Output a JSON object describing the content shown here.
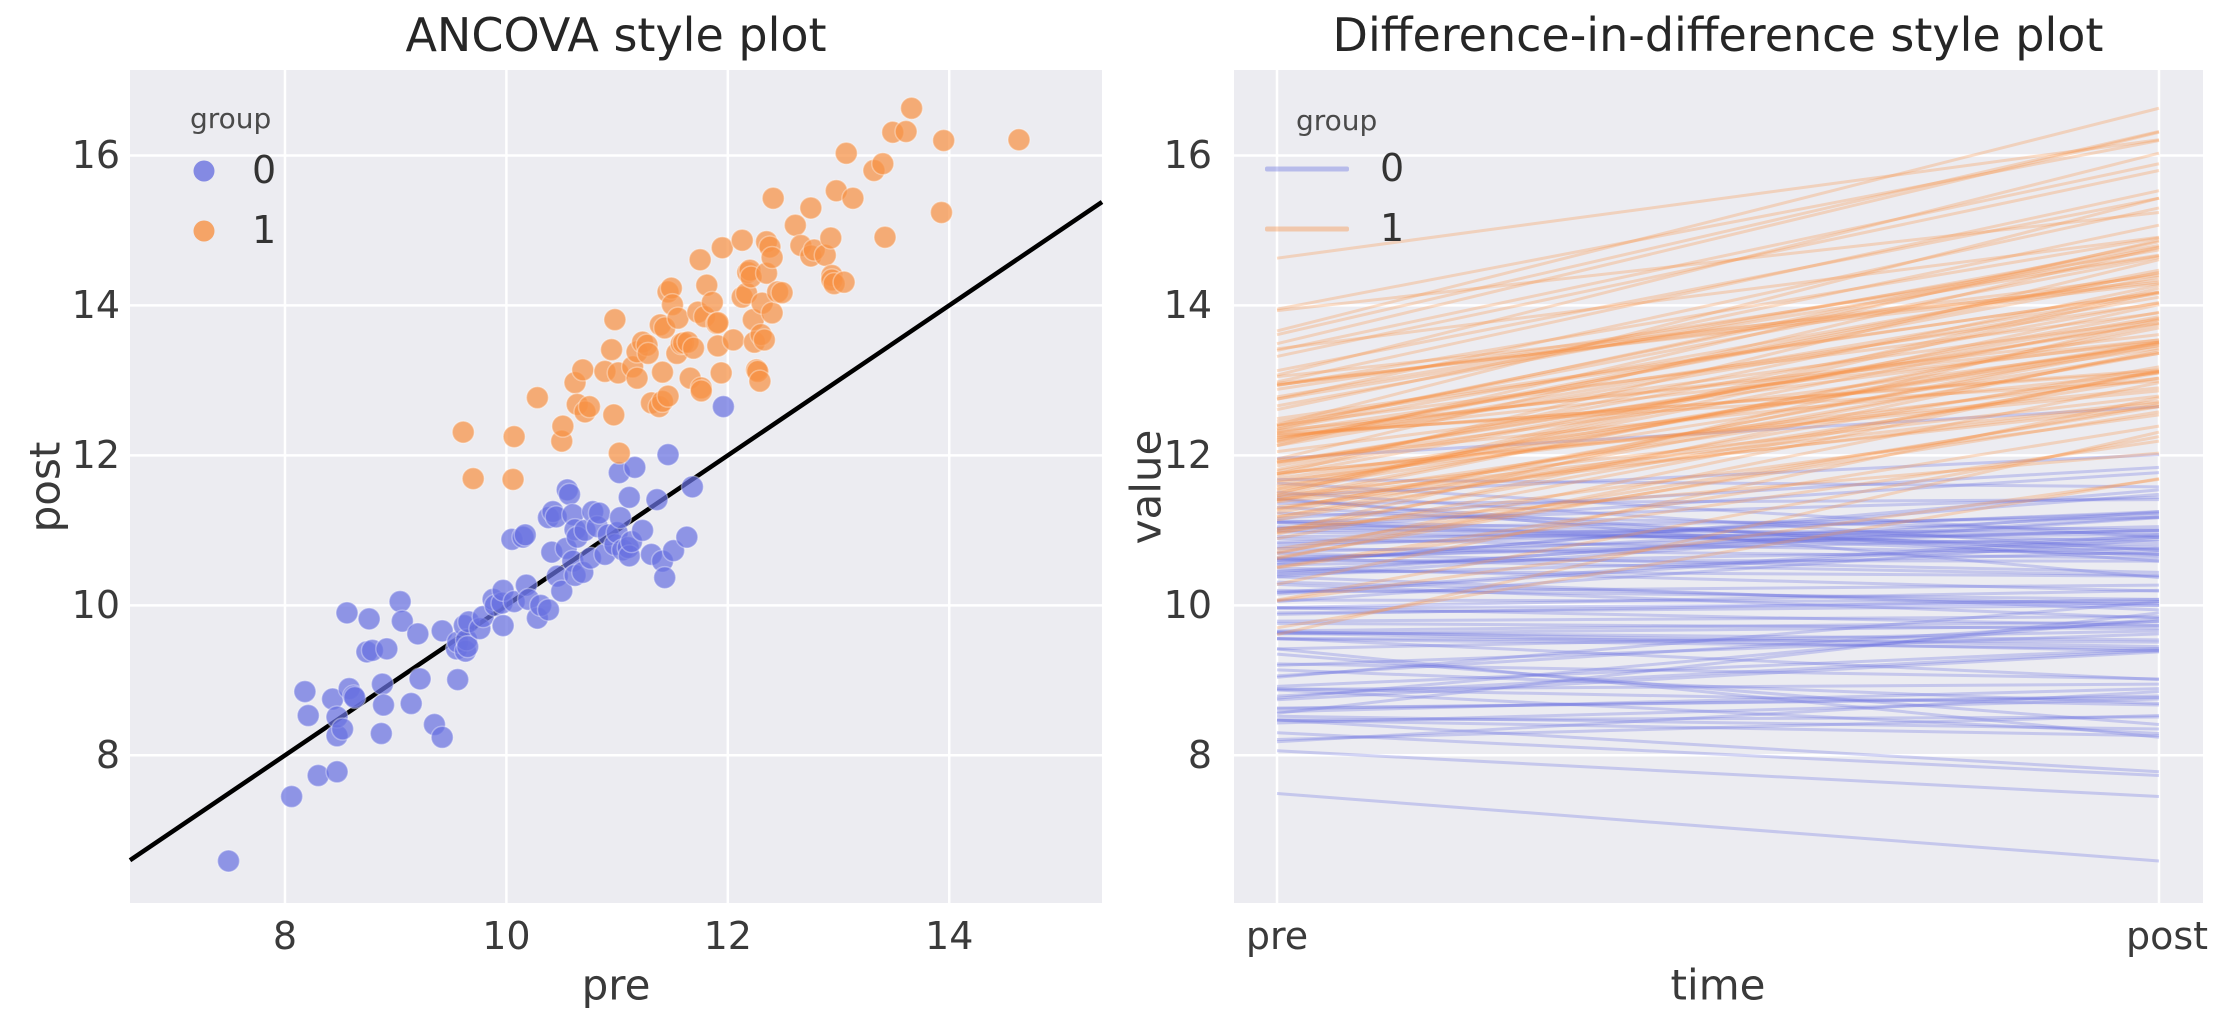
{
  "figure": {
    "background": "#ffffff",
    "panel_background": "#ececf1",
    "grid_color": "#ffffff",
    "tick_color": "#3a3a3a",
    "title_color": "#262626"
  },
  "groups": [
    {
      "name": "0",
      "color": "#6a72e0"
    },
    {
      "name": "1",
      "color": "#f79245"
    }
  ],
  "panels": {
    "left": {
      "title": "ANCOVA style plot",
      "xlabel": "pre",
      "ylabel": "post",
      "xticks": [
        8,
        10,
        12,
        14
      ],
      "yticks": [
        8,
        10,
        12,
        14,
        16
      ],
      "xlim": [
        6.6,
        15.38
      ],
      "ylim": [
        6.03,
        17.14
      ],
      "identity_line": {
        "from": [
          6.6,
          6.6
        ],
        "to": [
          15.38,
          15.38
        ],
        "color": "#000000"
      },
      "legend": {
        "title": "group",
        "items": [
          {
            "label": "0"
          },
          {
            "label": "1"
          }
        ]
      }
    },
    "right": {
      "title": "Difference-in-difference style plot",
      "xlabel": "time",
      "ylabel": "value",
      "xticklabels": [
        "pre",
        "post"
      ],
      "yticks": [
        8,
        10,
        12,
        14,
        16
      ],
      "ylim": [
        6.03,
        17.14
      ],
      "legend": {
        "title": "group",
        "items": [
          {
            "label": "0"
          },
          {
            "label": "1"
          }
        ]
      }
    }
  },
  "chart_data": {
    "type": [
      "scatter",
      "line"
    ],
    "description": "Paired pre/post values per unit, two groups. Left panel: scatter of pre vs post with black identity line y=x. Right panel: one line per unit from pre to post.",
    "legend_title": "group",
    "units": {
      "group0": [
        [
          7.49,
          6.59
        ],
        [
          8.06,
          7.45
        ],
        [
          8.18,
          8.85
        ],
        [
          8.21,
          8.53
        ],
        [
          8.3,
          7.73
        ],
        [
          8.43,
          8.75
        ],
        [
          8.47,
          8.26
        ],
        [
          8.47,
          7.78
        ],
        [
          8.47,
          8.51
        ],
        [
          8.52,
          8.35
        ],
        [
          8.56,
          9.9
        ],
        [
          8.58,
          8.89
        ],
        [
          8.62,
          8.79
        ],
        [
          8.63,
          8.77
        ],
        [
          8.74,
          9.38
        ],
        [
          8.76,
          9.82
        ],
        [
          8.79,
          9.4
        ],
        [
          8.87,
          8.29
        ],
        [
          8.88,
          8.95
        ],
        [
          8.89,
          8.67
        ],
        [
          8.92,
          9.42
        ],
        [
          9.04,
          10.05
        ],
        [
          9.06,
          9.79
        ],
        [
          9.14,
          8.69
        ],
        [
          9.2,
          9.62
        ],
        [
          9.22,
          9.02
        ],
        [
          9.35,
          8.41
        ],
        [
          9.42,
          9.66
        ],
        [
          9.42,
          8.24
        ],
        [
          9.55,
          9.42
        ],
        [
          9.56,
          9.01
        ],
        [
          9.56,
          9.51
        ],
        [
          9.62,
          9.73
        ],
        [
          9.63,
          9.39
        ],
        [
          9.64,
          9.54
        ],
        [
          9.65,
          9.45
        ],
        [
          9.66,
          9.78
        ],
        [
          9.76,
          9.69
        ],
        [
          9.79,
          9.85
        ],
        [
          9.88,
          10.08
        ],
        [
          9.9,
          10.0
        ],
        [
          9.96,
          10.03
        ],
        [
          9.97,
          10.2
        ],
        [
          9.97,
          9.73
        ],
        [
          10.05,
          10.88
        ],
        [
          10.07,
          10.05
        ],
        [
          10.15,
          10.91
        ],
        [
          10.17,
          10.94
        ],
        [
          10.18,
          10.27
        ],
        [
          10.2,
          10.08
        ],
        [
          10.28,
          9.83
        ],
        [
          10.31,
          10.0
        ],
        [
          10.38,
          9.94
        ],
        [
          10.38,
          11.17
        ],
        [
          10.41,
          10.71
        ],
        [
          10.42,
          11.25
        ],
        [
          10.45,
          11.18
        ],
        [
          10.46,
          10.39
        ],
        [
          10.5,
          10.19
        ],
        [
          10.54,
          10.76
        ],
        [
          10.55,
          11.54
        ],
        [
          10.57,
          11.48
        ],
        [
          10.6,
          10.59
        ],
        [
          10.6,
          11.21
        ],
        [
          10.62,
          10.4
        ],
        [
          10.62,
          11.01
        ],
        [
          10.64,
          10.91
        ],
        [
          10.69,
          10.44
        ],
        [
          10.71,
          11.0
        ],
        [
          10.76,
          10.63
        ],
        [
          10.78,
          11.25
        ],
        [
          10.82,
          11.05
        ],
        [
          10.84,
          11.23
        ],
        [
          10.89,
          10.68
        ],
        [
          10.92,
          10.94
        ],
        [
          10.98,
          10.81
        ],
        [
          11.0,
          10.97
        ],
        [
          11.02,
          11.77
        ],
        [
          11.03,
          11.17
        ],
        [
          11.05,
          10.74
        ],
        [
          11.1,
          10.77
        ],
        [
          11.11,
          10.66
        ],
        [
          11.11,
          11.44
        ],
        [
          11.13,
          10.85
        ],
        [
          11.16,
          11.84
        ],
        [
          11.23,
          11.0
        ],
        [
          11.31,
          10.68
        ],
        [
          11.36,
          11.41
        ],
        [
          11.41,
          10.59
        ],
        [
          11.43,
          10.37
        ],
        [
          11.46,
          12.01
        ],
        [
          11.51,
          10.73
        ],
        [
          11.63,
          10.91
        ],
        [
          11.68,
          11.58
        ],
        [
          11.96,
          12.65
        ]
      ],
      "group1": [
        [
          9.61,
          12.31
        ],
        [
          9.7,
          11.69
        ],
        [
          10.06,
          11.68
        ],
        [
          10.07,
          12.25
        ],
        [
          10.28,
          12.77
        ],
        [
          10.5,
          12.19
        ],
        [
          10.51,
          12.39
        ],
        [
          10.62,
          12.97
        ],
        [
          10.64,
          12.68
        ],
        [
          10.69,
          13.14
        ],
        [
          10.71,
          12.58
        ],
        [
          10.75,
          12.65
        ],
        [
          10.89,
          13.12
        ],
        [
          10.95,
          13.41
        ],
        [
          10.97,
          12.54
        ],
        [
          10.98,
          13.81
        ],
        [
          11.01,
          13.1
        ],
        [
          11.02,
          12.03
        ],
        [
          11.14,
          13.18
        ],
        [
          11.18,
          13.03
        ],
        [
          11.18,
          13.38
        ],
        [
          11.23,
          13.51
        ],
        [
          11.27,
          13.47
        ],
        [
          11.28,
          13.36
        ],
        [
          11.31,
          12.7
        ],
        [
          11.38,
          12.65
        ],
        [
          11.39,
          13.74
        ],
        [
          11.41,
          12.72
        ],
        [
          11.41,
          13.11
        ],
        [
          11.43,
          13.7
        ],
        [
          11.46,
          12.79
        ],
        [
          11.46,
          14.18
        ],
        [
          11.49,
          14.23
        ],
        [
          11.5,
          14.01
        ],
        [
          11.54,
          13.36
        ],
        [
          11.55,
          13.83
        ],
        [
          11.58,
          13.49
        ],
        [
          11.6,
          13.5
        ],
        [
          11.64,
          13.51
        ],
        [
          11.66,
          13.03
        ],
        [
          11.69,
          13.43
        ],
        [
          11.73,
          13.91
        ],
        [
          11.75,
          14.61
        ],
        [
          11.76,
          12.9
        ],
        [
          11.76,
          12.86
        ],
        [
          11.79,
          13.85
        ],
        [
          11.81,
          14.27
        ],
        [
          11.86,
          14.04
        ],
        [
          11.9,
          13.76
        ],
        [
          11.91,
          13.77
        ],
        [
          11.91,
          13.46
        ],
        [
          11.94,
          13.1
        ],
        [
          11.95,
          14.77
        ],
        [
          12.05,
          13.54
        ],
        [
          12.13,
          14.87
        ],
        [
          12.13,
          14.11
        ],
        [
          12.17,
          14.16
        ],
        [
          12.18,
          14.44
        ],
        [
          12.2,
          14.47
        ],
        [
          12.21,
          14.38
        ],
        [
          12.23,
          13.81
        ],
        [
          12.24,
          13.51
        ],
        [
          12.26,
          13.14
        ],
        [
          12.27,
          13.12
        ],
        [
          12.29,
          12.99
        ],
        [
          12.3,
          13.61
        ],
        [
          12.31,
          14.03
        ],
        [
          12.33,
          13.54
        ],
        [
          12.35,
          14.85
        ],
        [
          12.35,
          14.43
        ],
        [
          12.38,
          14.78
        ],
        [
          12.4,
          14.64
        ],
        [
          12.4,
          13.9
        ],
        [
          12.41,
          15.43
        ],
        [
          12.45,
          14.18
        ],
        [
          12.49,
          14.17
        ],
        [
          12.61,
          15.07
        ],
        [
          12.66,
          14.8
        ],
        [
          12.75,
          15.3
        ],
        [
          12.75,
          14.66
        ],
        [
          12.78,
          14.74
        ],
        [
          12.88,
          14.67
        ],
        [
          12.93,
          14.9
        ],
        [
          12.94,
          14.4
        ],
        [
          12.94,
          14.34
        ],
        [
          12.96,
          14.29
        ],
        [
          12.98,
          15.53
        ],
        [
          13.05,
          14.31
        ],
        [
          13.07,
          16.03
        ],
        [
          13.13,
          15.43
        ],
        [
          13.32,
          15.8
        ],
        [
          13.4,
          15.89
        ],
        [
          13.42,
          14.91
        ],
        [
          13.49,
          16.31
        ],
        [
          13.61,
          16.32
        ],
        [
          13.66,
          16.63
        ],
        [
          13.93,
          15.24
        ],
        [
          13.95,
          16.2
        ],
        [
          14.63,
          16.21
        ]
      ]
    }
  }
}
